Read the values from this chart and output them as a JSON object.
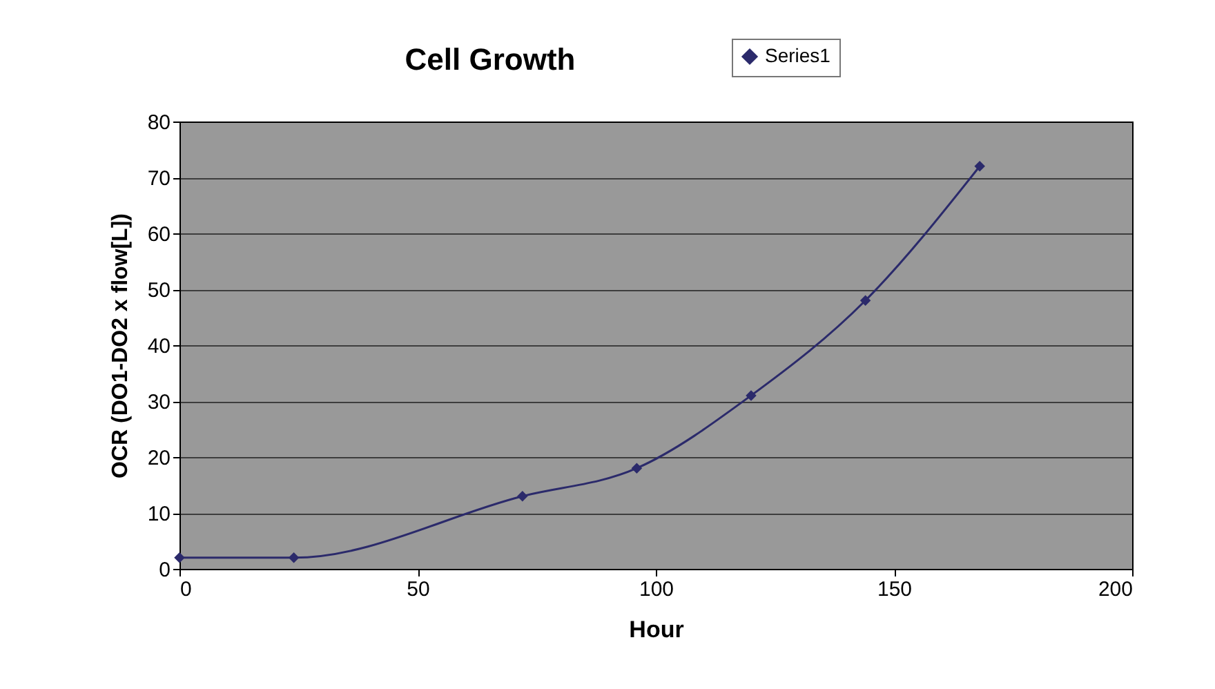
{
  "chart_data": {
    "type": "line",
    "title": "Cell Growth",
    "xlabel": "Hour",
    "ylabel": "OCR (DO1-DO2 x flow[L])",
    "x": [
      0,
      24,
      72,
      96,
      120,
      144,
      168
    ],
    "series": [
      {
        "name": "Series1",
        "color": "#2b2a6b",
        "values": [
          2,
          2,
          13,
          18,
          31,
          48,
          72
        ]
      }
    ],
    "xlim": [
      0,
      200
    ],
    "xticks": [
      0,
      50,
      100,
      150,
      200
    ],
    "ylim": [
      0,
      80
    ],
    "yticks": [
      0,
      10,
      20,
      30,
      40,
      50,
      60,
      70,
      80
    ],
    "grid": "y",
    "legend": "top right",
    "marker": "diamond",
    "line_style": "solid"
  }
}
